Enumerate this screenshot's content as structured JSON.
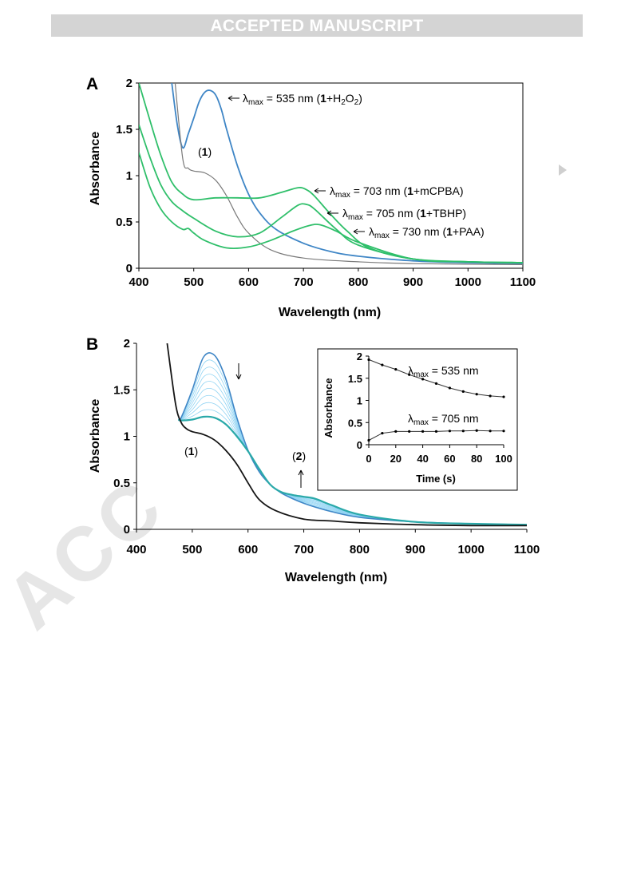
{
  "header": {
    "banner": "ACCEPTED MANUSCRIPT"
  },
  "watermark": "ACC",
  "colors": {
    "blue": "#3f86c6",
    "green": "#2fbf6a",
    "gray": "#7a7a7a",
    "black": "#151515",
    "teal": "#2aa9a9",
    "lightblue": "#8fd3f3"
  },
  "chart_data": [
    {
      "panel_label": "A",
      "type": "line",
      "xlabel": "Wavelength (nm)",
      "ylabel": "Absorbance",
      "xlim": [
        400,
        1100
      ],
      "ylim": [
        0,
        2
      ],
      "xticks": [
        "400",
        "500",
        "600",
        "700",
        "800",
        "900",
        "1000",
        "1100"
      ],
      "yticks": [
        "0",
        "0.5",
        "1",
        "1.5",
        "2"
      ],
      "series": [
        {
          "key": "h2o2",
          "color": "blue",
          "x": [
            460,
            470,
            480,
            490,
            500,
            510,
            520,
            530,
            540,
            550,
            560,
            580,
            600,
            620,
            650,
            700,
            750,
            800,
            900,
            1000,
            1100
          ],
          "y": [
            2.0,
            1.55,
            1.3,
            1.45,
            1.62,
            1.8,
            1.9,
            1.92,
            1.87,
            1.72,
            1.5,
            1.1,
            0.8,
            0.6,
            0.42,
            0.27,
            0.18,
            0.13,
            0.08,
            0.06,
            0.05
          ]
        },
        {
          "key": "one",
          "color": "gray",
          "x": [
            466,
            480,
            490,
            500,
            520,
            540,
            560,
            580,
            600,
            640,
            700,
            800,
            900,
            1100
          ],
          "y": [
            2.0,
            1.18,
            1.08,
            1.05,
            1.03,
            0.95,
            0.78,
            0.55,
            0.38,
            0.2,
            0.11,
            0.07,
            0.05,
            0.04
          ]
        },
        {
          "key": "mcpba",
          "color": "green",
          "x": [
            400,
            420,
            440,
            460,
            480,
            500,
            540,
            580,
            620,
            660,
            690,
            705,
            720,
            750,
            780,
            820,
            900,
            1000,
            1100
          ],
          "y": [
            2.0,
            1.6,
            1.22,
            0.93,
            0.8,
            0.74,
            0.76,
            0.76,
            0.76,
            0.82,
            0.87,
            0.85,
            0.78,
            0.58,
            0.4,
            0.22,
            0.1,
            0.07,
            0.06
          ]
        },
        {
          "key": "tbhp",
          "color": "green",
          "x": [
            400,
            420,
            440,
            460,
            480,
            500,
            540,
            580,
            620,
            660,
            690,
            705,
            720,
            760,
            800,
            900,
            1000,
            1100
          ],
          "y": [
            1.55,
            1.2,
            0.9,
            0.72,
            0.62,
            0.54,
            0.4,
            0.34,
            0.38,
            0.55,
            0.68,
            0.69,
            0.64,
            0.42,
            0.25,
            0.1,
            0.07,
            0.06
          ]
        },
        {
          "key": "paa",
          "color": "green",
          "x": [
            400,
            420,
            440,
            460,
            480,
            490,
            500,
            520,
            560,
            600,
            640,
            680,
            710,
            730,
            760,
            800,
            900,
            1000,
            1100
          ],
          "y": [
            1.25,
            0.88,
            0.64,
            0.5,
            0.42,
            0.43,
            0.38,
            0.3,
            0.22,
            0.23,
            0.3,
            0.4,
            0.46,
            0.47,
            0.4,
            0.28,
            0.1,
            0.07,
            0.06
          ]
        }
      ],
      "annotations": [
        {
          "pre": "λ",
          "sub": "max",
          "post": " = 535 nm (",
          "bold": "1",
          "tail": "+H",
          "sub2": "2",
          "tail2": "O",
          "sub3": "2",
          "tail3": ")"
        },
        {
          "pre": "λ",
          "sub": "max",
          "post": " = 703 nm (",
          "bold": "1",
          "tail": "+mCPBA)"
        },
        {
          "pre": "λ",
          "sub": "max",
          "post": " = 705 nm (",
          "bold": "1",
          "tail": "+TBHP)"
        },
        {
          "pre": "λ",
          "sub": "max",
          "post": " = 730 nm (",
          "bold": "1",
          "tail": "+PAA)"
        }
      ],
      "label_one": {
        "open": "(",
        "bold": "1",
        "close": ")"
      }
    },
    {
      "panel_label": "B",
      "type": "line",
      "xlabel": "Wavelength (nm)",
      "ylabel": "Absorbance",
      "xlim": [
        400,
        1100
      ],
      "ylim": [
        0,
        2
      ],
      "xticks": [
        "400",
        "500",
        "600",
        "700",
        "800",
        "900",
        "1000",
        "1100"
      ],
      "yticks": [
        "0",
        "0.5",
        "1",
        "1.5",
        "2"
      ],
      "base": {
        "x": [
          475,
          480,
          500,
          520,
          540,
          560,
          580,
          600,
          620,
          640,
          660,
          680,
          700,
          720,
          750,
          800,
          900,
          1000,
          1100
        ],
        "start": [
          1.18,
          1.2,
          1.5,
          1.85,
          1.87,
          1.62,
          1.2,
          0.85,
          0.62,
          0.48,
          0.39,
          0.33,
          0.28,
          0.24,
          0.19,
          0.13,
          0.08,
          0.06,
          0.05
        ],
        "end": [
          1.18,
          1.17,
          1.18,
          1.21,
          1.2,
          1.13,
          1.0,
          0.84,
          0.65,
          0.48,
          0.4,
          0.37,
          0.35,
          0.33,
          0.26,
          0.16,
          0.08,
          0.06,
          0.05
        ]
      },
      "n_intermediate": 8,
      "series_one": {
        "x": [
          455,
          470,
          480,
          490,
          500,
          520,
          540,
          560,
          580,
          600,
          620,
          650,
          700,
          750,
          800,
          900,
          1000,
          1100
        ],
        "y": [
          2.0,
          1.35,
          1.15,
          1.08,
          1.05,
          1.02,
          0.96,
          0.85,
          0.7,
          0.5,
          0.32,
          0.2,
          0.11,
          0.09,
          0.07,
          0.05,
          0.04,
          0.04
        ]
      },
      "label_one": {
        "open": "(",
        "bold": "1",
        "close": ")"
      },
      "label_two": {
        "open": "(",
        "bold": "2",
        "close": ")"
      },
      "inset": {
        "xlabel": "Time (s)",
        "ylabel": "Absorbance",
        "xlim": [
          0,
          100
        ],
        "ylim": [
          0,
          2
        ],
        "xticks": [
          "0",
          "20",
          "40",
          "60",
          "80",
          "100"
        ],
        "yticks": [
          "0",
          "0.5",
          "1",
          "1.5",
          "2"
        ],
        "series": [
          {
            "name_pre": "λ",
            "name_sub": "max",
            "name_post": " = 535 nm",
            "x": [
              0,
              10,
              20,
              30,
              40,
              50,
              60,
              70,
              80,
              90,
              100
            ],
            "y": [
              1.92,
              1.8,
              1.7,
              1.58,
              1.48,
              1.38,
              1.28,
              1.2,
              1.14,
              1.1,
              1.08
            ]
          },
          {
            "name_pre": "λ",
            "name_sub": "max",
            "name_post": " = 705 nm",
            "x": [
              0,
              10,
              20,
              30,
              40,
              50,
              60,
              70,
              80,
              90,
              100
            ],
            "y": [
              0.1,
              0.26,
              0.3,
              0.3,
              0.3,
              0.3,
              0.31,
              0.31,
              0.32,
              0.31,
              0.31
            ]
          }
        ]
      }
    }
  ]
}
